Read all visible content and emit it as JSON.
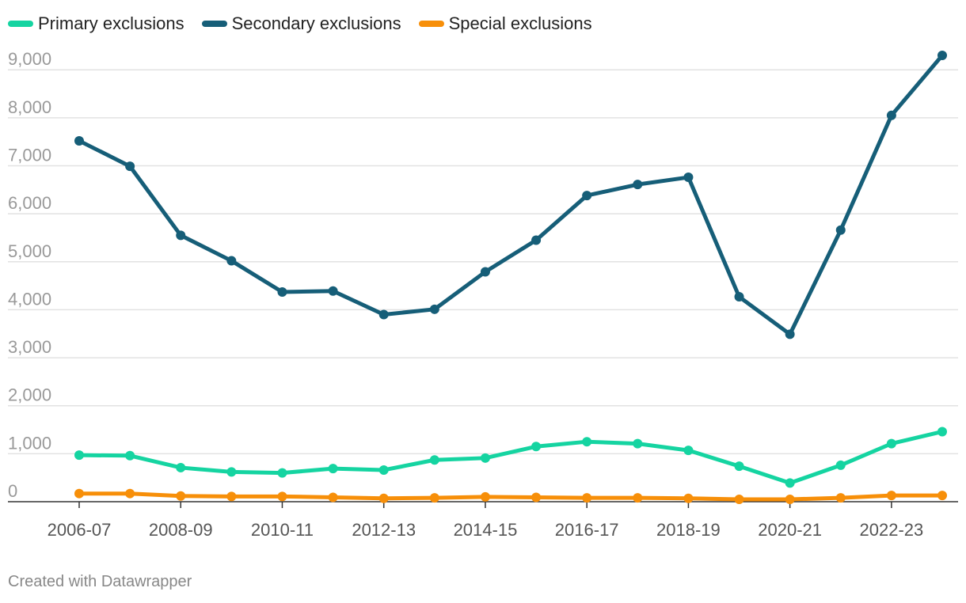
{
  "chart_data": {
    "type": "line",
    "title": "",
    "xlabel": "",
    "ylabel": "",
    "categories": [
      "2006-07",
      "2007-08",
      "2008-09",
      "2009-10",
      "2010-11",
      "2011-12",
      "2012-13",
      "2013-14",
      "2014-15",
      "2015-16",
      "2016-17",
      "2017-18",
      "2018-19",
      "2019-20",
      "2020-21",
      "2021-22",
      "2022-23",
      "2023-24"
    ],
    "x_tick_labels": [
      "2006-07",
      "2008-09",
      "2010-11",
      "2012-13",
      "2014-15",
      "2016-17",
      "2018-19",
      "2020-21",
      "2022-23"
    ],
    "y_ticks": [
      0,
      1000,
      2000,
      3000,
      4000,
      5000,
      6000,
      7000,
      8000,
      9000
    ],
    "y_tick_labels": [
      "0",
      "1,000",
      "2,000",
      "3,000",
      "4,000",
      "5,000",
      "6,000",
      "7,000",
      "8,000",
      "9,000"
    ],
    "ylim": [
      0,
      9300
    ],
    "grid": true,
    "legend_position": "top-left",
    "series": [
      {
        "name": "Primary exclusions",
        "color": "#15d4a1",
        "values": [
          970,
          960,
          710,
          620,
          600,
          690,
          660,
          870,
          910,
          1150,
          1250,
          1210,
          1070,
          740,
          390,
          760,
          1210,
          1460
        ]
      },
      {
        "name": "Secondary exclusions",
        "color": "#165e78",
        "values": [
          7520,
          6990,
          5550,
          5020,
          4370,
          4390,
          3900,
          4010,
          4790,
          5450,
          6380,
          6610,
          6760,
          4270,
          3490,
          5660,
          8050,
          9300
        ]
      },
      {
        "name": "Special exclusions",
        "color": "#f78f09",
        "values": [
          170,
          170,
          120,
          110,
          110,
          90,
          70,
          80,
          100,
          90,
          80,
          80,
          70,
          50,
          50,
          80,
          130,
          130
        ]
      }
    ]
  },
  "footer": {
    "credit": "Created with Datawrapper"
  }
}
